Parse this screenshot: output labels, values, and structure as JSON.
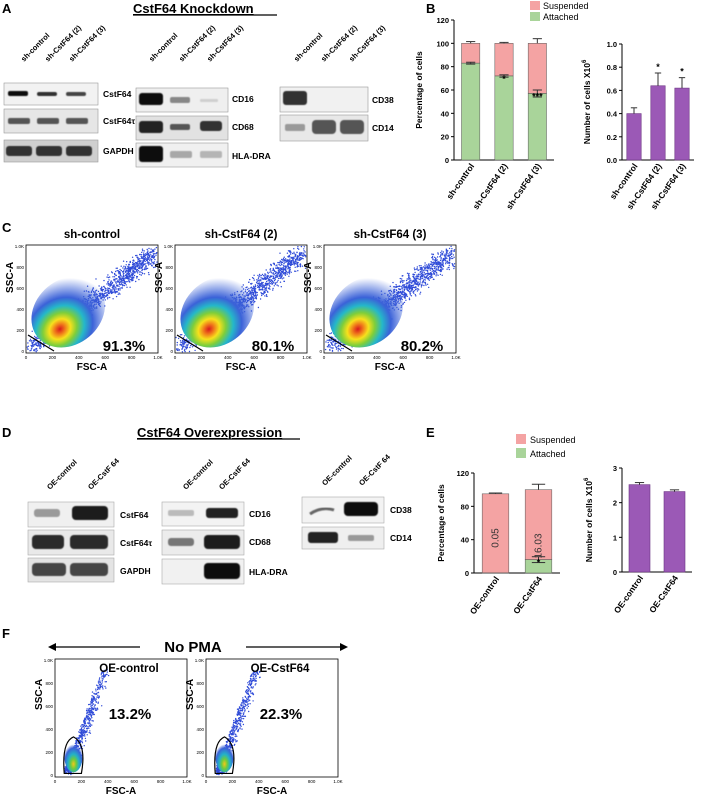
{
  "panels": {
    "A": "A",
    "B": "B",
    "C": "C",
    "D": "D",
    "E": "E",
    "F": "F"
  },
  "titles": {
    "knockdown": "CstF64 Knockdown",
    "overexpression": "CstF64 Overexpression"
  },
  "kd_blots": {
    "g1": {
      "lanes": [
        "sh-control",
        "sh-CstF64 (2)",
        "sh-CstF64 (3)"
      ],
      "bands": [
        "CstF64",
        "CstF64τ",
        "GAPDH"
      ]
    },
    "g2": {
      "lanes": [
        "sh-control",
        "sh-CstF64 (2)",
        "sh-CstF64 (3)"
      ],
      "bands": [
        "CD16",
        "CD68",
        "HLA-DRA"
      ]
    },
    "g3": {
      "lanes": [
        "sh-control",
        "sh-CstF64 (2)",
        "sh-CstF64 (3)"
      ],
      "bands": [
        "CD38",
        "CD14"
      ]
    }
  },
  "oe_blots": {
    "g1": {
      "lanes": [
        "OE-control",
        "OE-CstF 64"
      ],
      "bands": [
        "CstF64",
        "CstF64τ",
        "GAPDH"
      ]
    },
    "g2": {
      "lanes": [
        "OE-control",
        "OE-CstF 64"
      ],
      "bands": [
        "CD16",
        "CD68",
        "HLA-DRA"
      ]
    },
    "g3": {
      "lanes": [
        "OE-control",
        "OE-CstF 64"
      ],
      "bands": [
        "CD38",
        "CD14"
      ]
    }
  },
  "legend": {
    "suspended": "Suspended",
    "attached": "Attached"
  },
  "chart_data": [
    {
      "id": "B-left",
      "type": "bar",
      "stacked": true,
      "categories": [
        "sh-control",
        "sh-CstF64 (2)",
        "sh-CstF64 (3)"
      ],
      "series": [
        {
          "name": "Attached",
          "values": [
            83,
            72,
            57
          ],
          "errors": [
            0.8,
            1.0,
            3.0
          ],
          "color": "#a9d49a"
        },
        {
          "name": "Suspended",
          "values": [
            17,
            28,
            43
          ],
          "errors": [
            1.5,
            0.8,
            4.0
          ],
          "color": "#f4a3a3"
        }
      ],
      "annotations": [
        "",
        "*",
        "***"
      ],
      "ylabel": "Percentage of cells",
      "ylim": [
        0,
        120
      ],
      "yticks": [
        0,
        20,
        40,
        60,
        80,
        100,
        120
      ]
    },
    {
      "id": "B-right",
      "type": "bar",
      "categories": [
        "sh-control",
        "sh-CstF64 (2)",
        "sh-CstF64 (3)"
      ],
      "values": [
        0.4,
        0.64,
        0.62
      ],
      "errors": [
        0.05,
        0.11,
        0.09
      ],
      "color": "#9b59b6",
      "annotations": [
        "",
        "*",
        "*"
      ],
      "ylabel": "Number of cells X10",
      "ylabel_sup": "6",
      "ylim": [
        0,
        1.0
      ],
      "yticks": [
        "0.0",
        "0.2",
        "0.4",
        "0.6",
        "0.8",
        "1.0"
      ]
    },
    {
      "id": "E-left",
      "type": "bar",
      "stacked": true,
      "categories": [
        "OE-control",
        "OE-CstF64"
      ],
      "series": [
        {
          "name": "Attached",
          "values": [
            0.05,
            16.03
          ],
          "errors": [
            0,
            3.5
          ],
          "color": "#a9d49a"
        },
        {
          "name": "Suspended",
          "values": [
            94.95,
            83.97
          ],
          "errors": [
            1.0,
            6.5
          ],
          "color": "#f4a3a3"
        }
      ],
      "bar_labels": [
        "0.05",
        "16.03"
      ],
      "annotations": [
        "",
        "*"
      ],
      "ylabel": "Percentage of cells",
      "ylim": [
        0,
        120
      ],
      "yticks": [
        0,
        40,
        80,
        120
      ]
    },
    {
      "id": "E-right",
      "type": "bar",
      "categories": [
        "OE-control",
        "OE-CstF64"
      ],
      "values": [
        2.52,
        2.32
      ],
      "errors": [
        0.06,
        0.05
      ],
      "color": "#9b59b6",
      "ylabel": "Number of cells X10",
      "ylabel_sup": "6",
      "ylim": [
        0,
        3
      ],
      "yticks": [
        0,
        1,
        2,
        3
      ]
    }
  ],
  "flow_c": {
    "plots": [
      {
        "title": "sh-control",
        "pct": "91.3%"
      },
      {
        "title": "sh-CstF64 (2)",
        "pct": "80.1%"
      },
      {
        "title": "sh-CstF64 (3)",
        "pct": "80.2%"
      }
    ],
    "xlabel": "FSC-A",
    "ylabel": "SSC-A",
    "yticks": [
      "1.0K",
      "800",
      "600",
      "400",
      "200",
      "0"
    ],
    "xticks": [
      "0",
      "200",
      "400",
      "600",
      "800",
      "1.0K"
    ]
  },
  "flow_f": {
    "header": "No PMA",
    "plots": [
      {
        "title": "OE-control",
        "pct": "13.2%"
      },
      {
        "title": "OE-CstF64",
        "pct": "22.3%"
      }
    ],
    "xlabel": "FSC-A",
    "ylabel": "SSC-A",
    "yticks": [
      "1.0K",
      "800",
      "600",
      "400",
      "200",
      "0"
    ],
    "xticks": [
      "0",
      "200",
      "400",
      "600",
      "800",
      "1.0K"
    ]
  }
}
